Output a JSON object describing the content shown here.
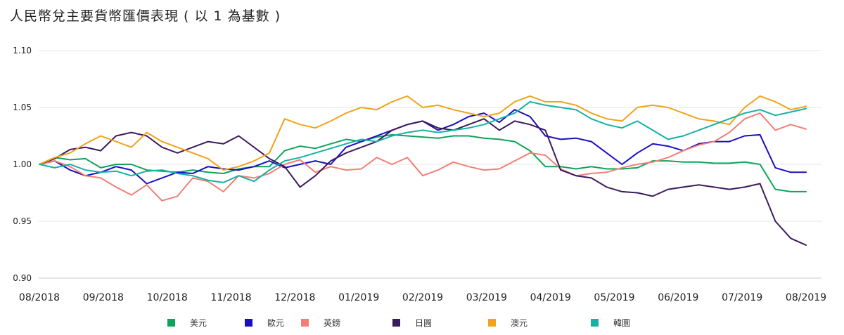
{
  "title": "人民幣兌主要貨幣匯價表現 ( 以 1 為基數 )",
  "chart_data": {
    "type": "line",
    "title": "人民幣兌主要貨幣匯價表現 ( 以 1 為基數 )",
    "xlabel": "",
    "ylabel": "",
    "x_ticks": [
      "08/2018",
      "09/2018",
      "10/2018",
      "11/2018",
      "12/2018",
      "01/2019",
      "02/2019",
      "03/2019",
      "04/2019",
      "05/2019",
      "06/2019",
      "07/2019",
      "08/2019"
    ],
    "y_ticks": [
      "0.90",
      "0.95",
      "1.00",
      "1.05",
      "1.10"
    ],
    "ylim": [
      0.9,
      1.1
    ],
    "grid": "horizontal",
    "legend_position": "bottom",
    "series": [
      {
        "name": "美元",
        "color": "#0fa35c",
        "values": [
          1.0,
          1.006,
          1.004,
          1.005,
          0.997,
          1.0,
          1.0,
          0.995,
          0.994,
          0.993,
          0.995,
          0.993,
          0.992,
          0.996,
          0.998,
          0.998,
          1.012,
          1.016,
          1.014,
          1.018,
          1.022,
          1.02,
          1.024,
          1.026,
          1.025,
          1.024,
          1.023,
          1.025,
          1.025,
          1.023,
          1.022,
          1.02,
          1.012,
          0.998,
          0.998,
          0.996,
          0.998,
          0.996,
          0.996,
          0.997,
          1.003,
          1.003,
          1.002,
          1.002,
          1.001,
          1.001,
          1.002,
          1.0,
          0.978,
          0.976,
          0.976
        ]
      },
      {
        "name": "歐元",
        "color": "#1a0fc0",
        "values": [
          1.0,
          1.003,
          0.995,
          0.99,
          0.993,
          0.998,
          0.995,
          0.983,
          0.988,
          0.993,
          0.992,
          0.998,
          0.996,
          0.995,
          0.998,
          1.003,
          0.997,
          1.0,
          1.003,
          1.0,
          1.015,
          1.02,
          1.025,
          1.03,
          1.035,
          1.038,
          1.03,
          1.035,
          1.042,
          1.045,
          1.037,
          1.048,
          1.042,
          1.025,
          1.022,
          1.023,
          1.02,
          1.01,
          1.0,
          1.01,
          1.018,
          1.016,
          1.012,
          1.018,
          1.02,
          1.02,
          1.025,
          1.026,
          0.997,
          0.993,
          0.993
        ]
      },
      {
        "name": "英鎊",
        "color": "#f37f74",
        "values": [
          1.0,
          1.003,
          0.998,
          0.99,
          0.988,
          0.98,
          0.973,
          0.982,
          0.968,
          0.972,
          0.988,
          0.985,
          0.976,
          0.99,
          0.988,
          0.992,
          1.0,
          1.004,
          0.993,
          0.998,
          0.995,
          0.996,
          1.006,
          1.0,
          1.006,
          0.99,
          0.995,
          1.002,
          0.998,
          0.995,
          0.996,
          1.003,
          1.01,
          1.008,
          0.996,
          0.99,
          0.992,
          0.993,
          0.997,
          1.0,
          1.002,
          1.006,
          1.012,
          1.017,
          1.02,
          1.028,
          1.04,
          1.045,
          1.03,
          1.035,
          1.031
        ]
      },
      {
        "name": "日圓",
        "color": "#3c1a5e",
        "values": [
          1.0,
          1.005,
          1.013,
          1.015,
          1.012,
          1.025,
          1.028,
          1.025,
          1.015,
          1.01,
          1.015,
          1.02,
          1.018,
          1.025,
          1.015,
          1.005,
          0.998,
          0.98,
          0.99,
          1.003,
          1.01,
          1.015,
          1.02,
          1.03,
          1.035,
          1.038,
          1.032,
          1.03,
          1.035,
          1.04,
          1.03,
          1.038,
          1.035,
          1.03,
          0.995,
          0.99,
          0.988,
          0.98,
          0.976,
          0.975,
          0.972,
          0.978,
          0.98,
          0.982,
          0.98,
          0.978,
          0.98,
          0.983,
          0.95,
          0.935,
          0.929
        ]
      },
      {
        "name": "澳元",
        "color": "#f0a31c",
        "values": [
          1.0,
          1.006,
          1.01,
          1.018,
          1.025,
          1.02,
          1.015,
          1.028,
          1.02,
          1.015,
          1.01,
          1.005,
          0.995,
          0.998,
          1.003,
          1.01,
          1.04,
          1.035,
          1.032,
          1.038,
          1.045,
          1.05,
          1.048,
          1.055,
          1.06,
          1.05,
          1.052,
          1.048,
          1.045,
          1.042,
          1.045,
          1.055,
          1.06,
          1.055,
          1.055,
          1.052,
          1.045,
          1.04,
          1.038,
          1.05,
          1.052,
          1.05,
          1.045,
          1.04,
          1.038,
          1.035,
          1.05,
          1.06,
          1.055,
          1.048,
          1.051
        ]
      },
      {
        "name": "韓圜",
        "color": "#16b0a6",
        "values": [
          1.0,
          0.997,
          1.0,
          0.995,
          0.993,
          0.994,
          0.99,
          0.994,
          0.995,
          0.992,
          0.99,
          0.986,
          0.984,
          0.99,
          0.985,
          0.995,
          1.003,
          1.006,
          1.01,
          1.014,
          1.018,
          1.022,
          1.02,
          1.025,
          1.028,
          1.03,
          1.028,
          1.03,
          1.032,
          1.035,
          1.04,
          1.045,
          1.055,
          1.052,
          1.05,
          1.048,
          1.04,
          1.035,
          1.032,
          1.038,
          1.03,
          1.022,
          1.025,
          1.03,
          1.035,
          1.04,
          1.045,
          1.048,
          1.043,
          1.046,
          1.049
        ]
      }
    ]
  }
}
